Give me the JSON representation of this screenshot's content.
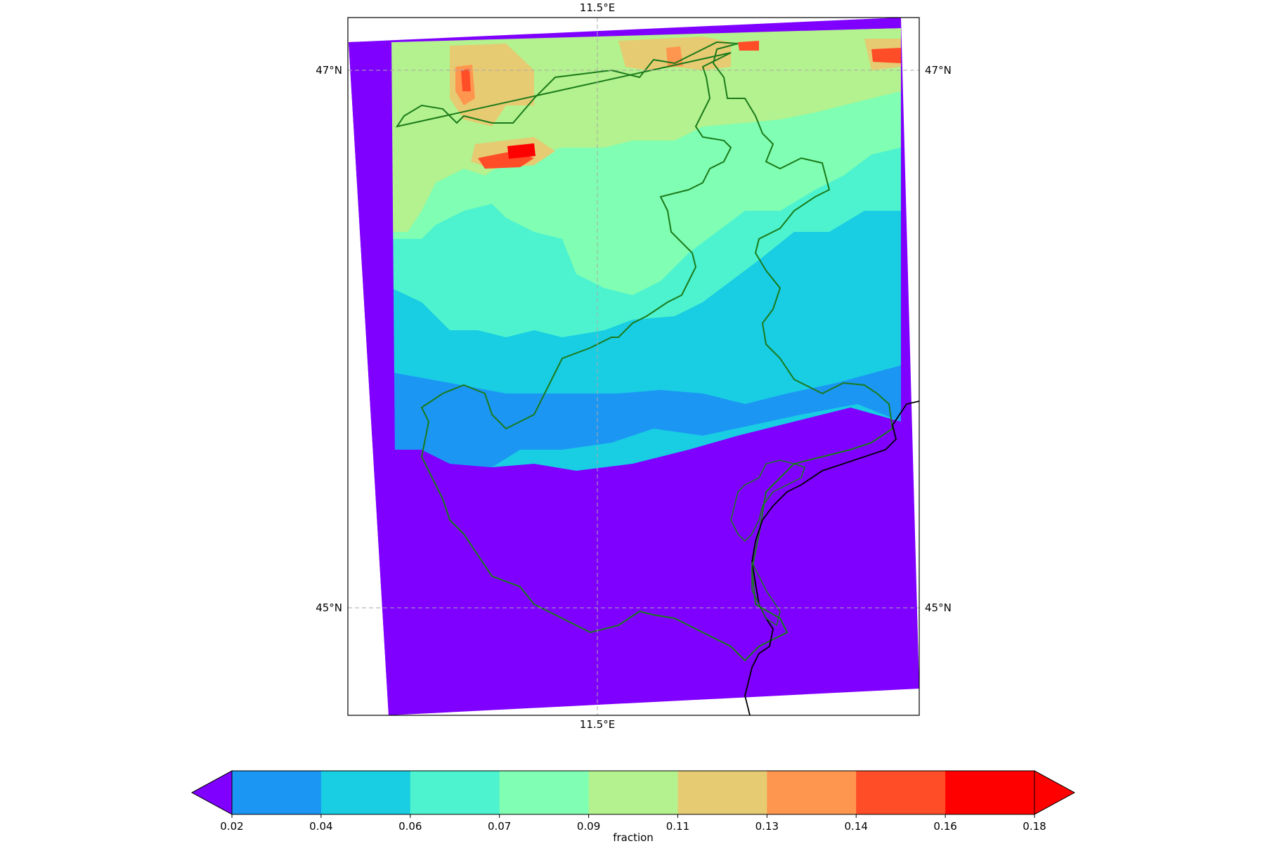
{
  "map": {
    "lon_label_top": "11.5°E",
    "lon_label_bottom": "11.5°E",
    "lat_labels": [
      {
        "name": "lat-47",
        "text": "47°N"
      },
      {
        "name": "lat-45",
        "text": "45°N"
      }
    ],
    "colors": {
      "background_field": "#7f00ff",
      "region_border": "#1a7a1a",
      "coastline": "#000000",
      "gridline": "#aaaaaa"
    }
  },
  "colorbar": {
    "label": "fraction",
    "ticks": [
      "0.02",
      "0.04",
      "0.06",
      "0.07",
      "0.09",
      "0.11",
      "0.13",
      "0.14",
      "0.16",
      "0.18"
    ],
    "under_color": "#7f00ff",
    "over_color": "#ff0000",
    "segment_colors": [
      "#1b96f3",
      "#19cde3",
      "#4df3ce",
      "#80feb3",
      "#b3f28e",
      "#e6cb73",
      "#ff9650",
      "#ff4d28",
      "#ff0000"
    ]
  },
  "chart_data": {
    "type": "heatmap",
    "quantity": "fraction",
    "lat_ticks": [
      "47°N",
      "45°N"
    ],
    "lon_ticks": [
      "11.5°E"
    ],
    "color_levels": [
      0.02,
      0.04,
      0.06,
      0.07,
      0.09,
      0.11,
      0.13,
      0.14,
      0.16,
      0.18
    ],
    "extend": "both"
  }
}
